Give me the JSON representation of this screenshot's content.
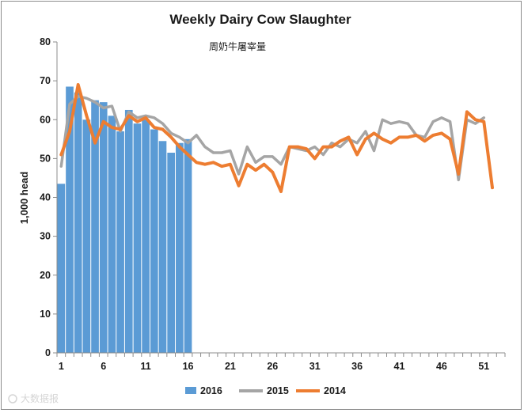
{
  "chart_data": {
    "type": "bar",
    "title": "Weekly Dairy Cow Slaughter",
    "subtitle": "周奶牛屠宰量",
    "ylabel": "1,000 head",
    "xlabel": "",
    "ylim": [
      0,
      80
    ],
    "yticks": [
      0,
      10,
      20,
      30,
      40,
      50,
      60,
      70,
      80
    ],
    "xlim": [
      1,
      53
    ],
    "xticks": [
      1,
      6,
      11,
      16,
      21,
      26,
      31,
      36,
      41,
      46,
      51
    ],
    "grid": false,
    "legend_position": "bottom",
    "series": [
      {
        "name": "2016",
        "type": "bar",
        "color": "#5b9bd5",
        "x": [
          1,
          2,
          3,
          4,
          5,
          6,
          7,
          8,
          9,
          10,
          11,
          12,
          13,
          14,
          15,
          16
        ],
        "values": [
          43.5,
          68.5,
          67,
          60,
          65,
          64.5,
          61,
          57,
          62.5,
          59,
          60,
          57.5,
          54.5,
          51.5,
          54,
          55
        ]
      },
      {
        "name": "2015",
        "type": "line",
        "color": "#a5a5a5",
        "x": [
          1,
          2,
          3,
          4,
          5,
          6,
          7,
          8,
          9,
          10,
          11,
          12,
          13,
          14,
          15,
          16,
          17,
          18,
          19,
          20,
          21,
          22,
          23,
          24,
          25,
          26,
          27,
          28,
          29,
          30,
          31,
          32,
          33,
          34,
          35,
          36,
          37,
          38,
          39,
          40,
          41,
          42,
          43,
          44,
          45,
          46,
          47,
          48,
          49,
          50,
          51
        ],
        "values": [
          48,
          64,
          66,
          65.5,
          64.5,
          63,
          63.5,
          57,
          62,
          60.5,
          61,
          60.5,
          59,
          56.5,
          55.5,
          54,
          56,
          53,
          51.5,
          51.5,
          52,
          46,
          53,
          49,
          50.5,
          50.5,
          48.5,
          53,
          52.5,
          52,
          53,
          51,
          54,
          53,
          55,
          54,
          57,
          52,
          60,
          59,
          59.5,
          59,
          56,
          55.5,
          59.5,
          60.5,
          59.5,
          44.5,
          60,
          59,
          60.5
        ]
      },
      {
        "name": "2014",
        "type": "line",
        "color": "#ed7d31",
        "x": [
          1,
          2,
          3,
          4,
          5,
          6,
          7,
          8,
          9,
          10,
          11,
          12,
          13,
          14,
          15,
          16,
          17,
          18,
          19,
          20,
          21,
          22,
          23,
          24,
          25,
          26,
          27,
          28,
          29,
          30,
          31,
          32,
          33,
          34,
          35,
          36,
          37,
          38,
          39,
          40,
          41,
          42,
          43,
          44,
          45,
          46,
          47,
          48,
          49,
          50,
          51,
          52
        ],
        "values": [
          51,
          57,
          69,
          61,
          54,
          59.5,
          58,
          57.5,
          61,
          59.5,
          60.5,
          58,
          57.5,
          55.5,
          53,
          51,
          49,
          48.5,
          49,
          48,
          48.5,
          43,
          48.5,
          47,
          48.5,
          46.5,
          41.5,
          53,
          53,
          52.5,
          50,
          53,
          53,
          54.5,
          55.5,
          51,
          55,
          56.5,
          55,
          54,
          55.5,
          55.5,
          56,
          54.5,
          56,
          56.5,
          55,
          46,
          62,
          60,
          59.5,
          42.5
        ]
      }
    ]
  },
  "watermark": "大数据报"
}
